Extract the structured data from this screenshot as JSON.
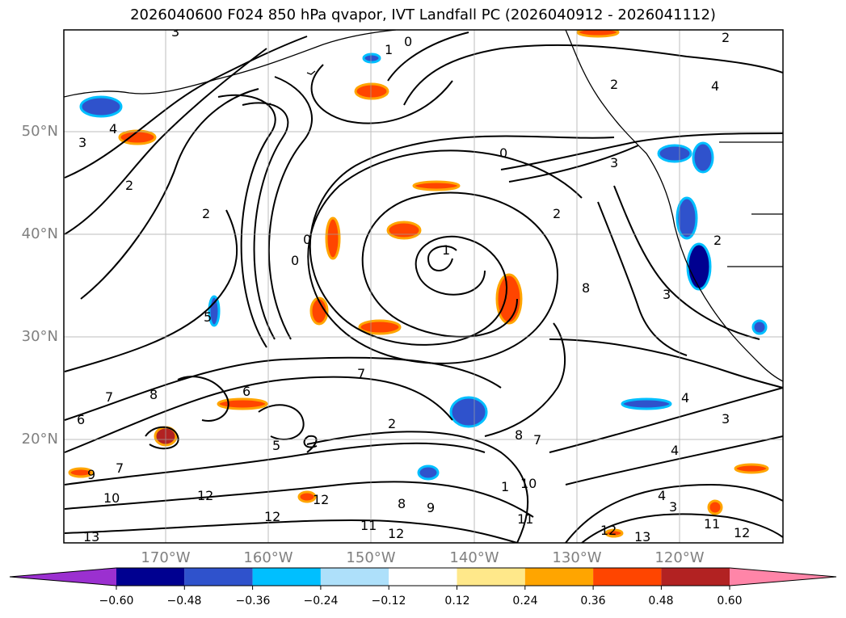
{
  "title": "2026040600 F024 850 hPa qvapor, IVT Landfall PC (2026040912 - 2026041112)",
  "latitude_labels": [
    "50°N",
    "40°N",
    "30°N",
    "20°N"
  ],
  "longitude_labels": [
    "170°W",
    "160°W",
    "150°W",
    "140°W",
    "130°W",
    "120°W"
  ],
  "colorbar": {
    "tick_labels": [
      "−0.60",
      "−0.48",
      "−0.36",
      "−0.24",
      "−0.12",
      "0.12",
      "0.24",
      "0.36",
      "0.48",
      "0.60"
    ],
    "colors": [
      "#9b30d0",
      "#000090",
      "#2f52cc",
      "#00bfff",
      "#aee0fa",
      "#ffffff",
      "#ffe88a",
      "#ffa500",
      "#ff4500",
      "#b22222",
      "#ff85a8"
    ]
  },
  "contour_labels": [
    "3",
    "1",
    "0",
    "2",
    "2",
    "4",
    "2",
    "4",
    "3",
    "2",
    "2",
    "0",
    "0",
    "3",
    "2",
    "1",
    "0",
    "8",
    "3",
    "5",
    "7",
    "6",
    "7",
    "6",
    "9",
    "7",
    "8",
    "10",
    "12",
    "12",
    "12",
    "11",
    "12",
    "8",
    "9",
    "11",
    "12",
    "13",
    "11",
    "4",
    "3",
    "12",
    "13",
    "10",
    "4",
    "3",
    "4",
    "2",
    "5",
    "1",
    "7",
    "8"
  ],
  "coast_labels": {},
  "fill_colors": {
    "blue_light": "#00bfff",
    "blue_mid": "#2f52cc",
    "blue_dark": "#000090",
    "orange": "#ffa500",
    "red_orange": "#ff4500",
    "yellow": "#ffe88a",
    "dark_red": "#b22222"
  }
}
